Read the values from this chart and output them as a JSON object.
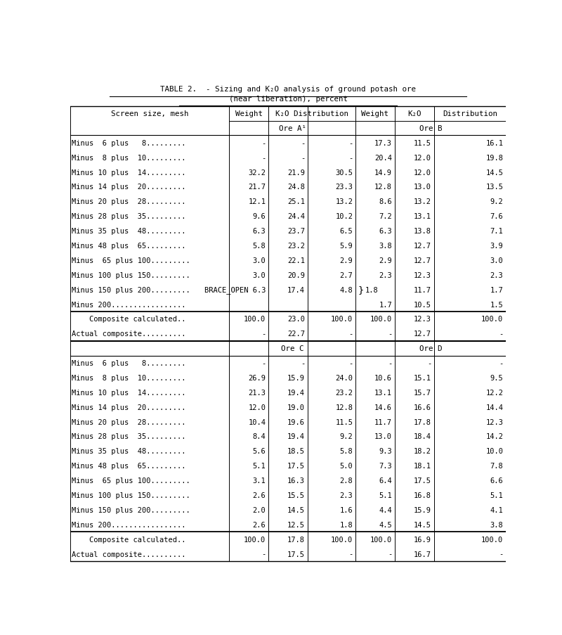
{
  "title1": "TABLE 2.  - Sizing and K₂O analysis of ground potash ore",
  "title2": "(near liberation), percent",
  "col_headers_row1": [
    "Screen size, mesh",
    "Weight",
    "K₂O",
    "Distribution",
    "Weight",
    "K₂O",
    "Distribution"
  ],
  "ore_ab_headers": [
    "Ore A¹",
    "Ore B"
  ],
  "ore_cd_headers": [
    "Ore C",
    "Ore D"
  ],
  "rows_ab": [
    [
      "Minus  6 plus   8.........",
      "-",
      "-",
      "-",
      "17.3",
      "11.5",
      "16.1"
    ],
    [
      "Minus  8 plus  10.........",
      "-",
      "-",
      "-",
      "20.4",
      "12.0",
      "19.8"
    ],
    [
      "Minus 10 plus  14.........",
      "32.2",
      "21.9",
      "30.5",
      "14.9",
      "12.0",
      "14.5"
    ],
    [
      "Minus 14 plus  20.........",
      "21.7",
      "24.8",
      "23.3",
      "12.8",
      "13.0",
      "13.5"
    ],
    [
      "Minus 20 plus  28.........",
      "12.1",
      "25.1",
      "13.2",
      "8.6",
      "13.2",
      "9.2"
    ],
    [
      "Minus 28 plus  35.........",
      "9.6",
      "24.4",
      "10.2",
      "7.2",
      "13.1",
      "7.6"
    ],
    [
      "Minus 35 plus  48.........",
      "6.3",
      "23.7",
      "6.5",
      "6.3",
      "13.8",
      "7.1"
    ],
    [
      "Minus 48 plus  65.........",
      "5.8",
      "23.2",
      "5.9",
      "3.8",
      "12.7",
      "3.9"
    ],
    [
      "Minus  65 plus 100.........",
      "3.0",
      "22.1",
      "2.9",
      "2.9",
      "12.7",
      "3.0"
    ],
    [
      "Minus 100 plus 150.........",
      "3.0",
      "20.9",
      "2.7",
      "2.3",
      "12.3",
      "2.3"
    ],
    [
      "Minus 150 plus 200.........",
      "BRACE_OPEN 6.3",
      "17.4",
      "4.8",
      "BRACE_CLOSE 1.8",
      "11.7",
      "1.7"
    ],
    [
      "Minus 200.................",
      "",
      "",
      "",
      "1.7",
      "10.5",
      "1.5"
    ],
    [
      "    Composite calculated..",
      "100.0",
      "23.0",
      "100.0",
      "100.0",
      "12.3",
      "100.0"
    ],
    [
      "Actual composite..........",
      "-",
      "22.7",
      "-",
      "-",
      "12.7",
      "-"
    ]
  ],
  "rows_cd": [
    [
      "Minus  6 plus   8.........",
      "-",
      "-",
      "-",
      "-",
      "-",
      "-"
    ],
    [
      "Minus  8 plus  10.........",
      "26.9",
      "15.9",
      "24.0",
      "10.6",
      "15.1",
      "9.5"
    ],
    [
      "Minus 10 plus  14.........",
      "21.3",
      "19.4",
      "23.2",
      "13.1",
      "15.7",
      "12.2"
    ],
    [
      "Minus 14 plus  20.........",
      "12.0",
      "19.0",
      "12.8",
      "14.6",
      "16.6",
      "14.4"
    ],
    [
      "Minus 20 plus  28.........",
      "10.4",
      "19.6",
      "11.5",
      "11.7",
      "17.8",
      "12.3"
    ],
    [
      "Minus 28 plus  35.........",
      "8.4",
      "19.4",
      "9.2",
      "13.0",
      "18.4",
      "14.2"
    ],
    [
      "Minus 35 plus  48.........",
      "5.6",
      "18.5",
      "5.8",
      "9.3",
      "18.2",
      "10.0"
    ],
    [
      "Minus 48 plus  65.........",
      "5.1",
      "17.5",
      "5.0",
      "7.3",
      "18.1",
      "7.8"
    ],
    [
      "Minus  65 plus 100.........",
      "3.1",
      "16.3",
      "2.8",
      "6.4",
      "17.5",
      "6.6"
    ],
    [
      "Minus 100 plus 150.........",
      "2.6",
      "15.5",
      "2.3",
      "5.1",
      "16.8",
      "5.1"
    ],
    [
      "Minus 150 plus 200.........",
      "2.0",
      "14.5",
      "1.6",
      "4.4",
      "15.9",
      "4.1"
    ],
    [
      "Minus 200.................",
      "2.6",
      "12.5",
      "1.8",
      "4.5",
      "14.5",
      "3.8"
    ],
    [
      "    Composite calculated..",
      "100.0",
      "17.8",
      "100.0",
      "100.0",
      "16.9",
      "100.0"
    ],
    [
      "Actual composite..........",
      "-",
      "17.5",
      "-",
      "-",
      "16.7",
      "-"
    ]
  ],
  "bg_color": "#ffffff",
  "text_color": "#000000",
  "col_divs": [
    0.0,
    0.365,
    0.455,
    0.545,
    0.655,
    0.745,
    0.835,
    1.0
  ]
}
